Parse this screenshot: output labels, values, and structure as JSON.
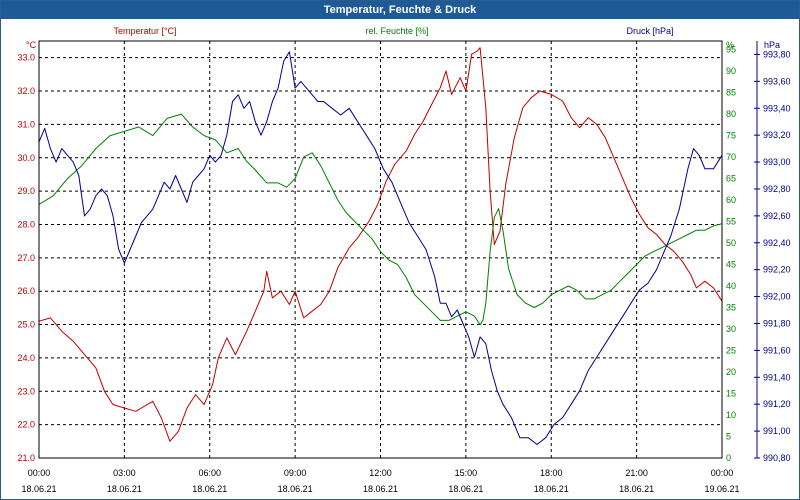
{
  "window": {
    "title": "Temperatur, Feuchte & Druck"
  },
  "colors": {
    "temperature": "#c00000",
    "humidity": "#008000",
    "pressure": "#00008b",
    "title_bar": "#1e5a96",
    "grid": "#000000"
  },
  "chart_data": {
    "type": "line",
    "title": "Temperatur, Feuchte & Druck",
    "grid": true,
    "x_ticks": [
      {
        "time": "00:00",
        "date": "18.06.21"
      },
      {
        "time": "03:00",
        "date": "18.06.21"
      },
      {
        "time": "06:00",
        "date": "18.06.21"
      },
      {
        "time": "09:00",
        "date": "18.06.21"
      },
      {
        "time": "12:00",
        "date": "18.06.21"
      },
      {
        "time": "15:00",
        "date": "18.06.21"
      },
      {
        "time": "18:00",
        "date": "18.06.21"
      },
      {
        "time": "21:00",
        "date": "18.06.21"
      },
      {
        "time": "00:00",
        "date": "19.06.21"
      }
    ],
    "x_range_hours": [
      0,
      24
    ],
    "axes": {
      "temperature": {
        "unit": "°C",
        "range": [
          21.0,
          33.5
        ],
        "ticks": [
          "21.0",
          "22.0",
          "23.0",
          "24.0",
          "25.0",
          "26.0",
          "27.0",
          "28.0",
          "29.0",
          "30.0",
          "31.0",
          "32.0",
          "33.0"
        ]
      },
      "humidity": {
        "unit": "%",
        "range": [
          0,
          97
        ],
        "ticks": [
          "0",
          "5",
          "10",
          "15",
          "20",
          "25",
          "30",
          "35",
          "40",
          "45",
          "50",
          "55",
          "60",
          "65",
          "70",
          "75",
          "80",
          "85",
          "90",
          "95"
        ]
      },
      "pressure": {
        "unit": "hPa",
        "range": [
          990.8,
          993.9
        ],
        "ticks": [
          "990,80",
          "991,00",
          "991,20",
          "991,40",
          "991,60",
          "991,80",
          "992,00",
          "992,20",
          "992,40",
          "992,60",
          "992,80",
          "993,00",
          "993,20",
          "993,40",
          "993,60",
          "993,80"
        ]
      }
    },
    "series": [
      {
        "name": "Temperatur [°C]",
        "axis": "temperature",
        "points": [
          [
            0,
            25.1
          ],
          [
            0.4,
            25.2
          ],
          [
            0.8,
            24.8
          ],
          [
            1.2,
            24.5
          ],
          [
            1.6,
            24.1
          ],
          [
            2.0,
            23.7
          ],
          [
            2.3,
            23.0
          ],
          [
            2.6,
            22.6
          ],
          [
            3.0,
            22.5
          ],
          [
            3.4,
            22.4
          ],
          [
            3.6,
            22.5
          ],
          [
            4.0,
            22.7
          ],
          [
            4.3,
            22.2
          ],
          [
            4.6,
            21.5
          ],
          [
            4.9,
            21.8
          ],
          [
            5.2,
            22.5
          ],
          [
            5.5,
            22.9
          ],
          [
            5.8,
            22.6
          ],
          [
            6.1,
            23.2
          ],
          [
            6.3,
            24.0
          ],
          [
            6.6,
            24.6
          ],
          [
            6.9,
            24.1
          ],
          [
            7.3,
            24.8
          ],
          [
            7.6,
            25.4
          ],
          [
            7.9,
            26.0
          ],
          [
            8.0,
            26.6
          ],
          [
            8.2,
            25.8
          ],
          [
            8.5,
            26.0
          ],
          [
            8.8,
            25.6
          ],
          [
            9.0,
            26.0
          ],
          [
            9.3,
            25.2
          ],
          [
            9.6,
            25.4
          ],
          [
            9.9,
            25.6
          ],
          [
            10.2,
            26.0
          ],
          [
            10.5,
            26.7
          ],
          [
            10.9,
            27.3
          ],
          [
            11.2,
            27.6
          ],
          [
            11.6,
            28.1
          ],
          [
            11.9,
            28.6
          ],
          [
            12.2,
            29.3
          ],
          [
            12.5,
            29.8
          ],
          [
            12.9,
            30.2
          ],
          [
            13.2,
            30.7
          ],
          [
            13.5,
            31.1
          ],
          [
            13.8,
            31.6
          ],
          [
            14.1,
            32.1
          ],
          [
            14.3,
            32.6
          ],
          [
            14.5,
            31.9
          ],
          [
            14.8,
            32.4
          ],
          [
            15.0,
            32.0
          ],
          [
            15.2,
            33.1
          ],
          [
            15.4,
            33.2
          ],
          [
            15.5,
            33.3
          ],
          [
            15.7,
            31.5
          ],
          [
            15.85,
            29.0
          ],
          [
            16.0,
            27.4
          ],
          [
            16.2,
            27.8
          ],
          [
            16.4,
            29.2
          ],
          [
            16.7,
            30.6
          ],
          [
            17.0,
            31.5
          ],
          [
            17.3,
            31.8
          ],
          [
            17.6,
            32.0
          ],
          [
            18.0,
            31.9
          ],
          [
            18.4,
            31.7
          ],
          [
            18.7,
            31.2
          ],
          [
            19.0,
            30.9
          ],
          [
            19.3,
            31.2
          ],
          [
            19.6,
            31.0
          ],
          [
            19.9,
            30.6
          ],
          [
            20.2,
            30.0
          ],
          [
            20.5,
            29.4
          ],
          [
            20.8,
            28.8
          ],
          [
            21.1,
            28.3
          ],
          [
            21.4,
            27.9
          ],
          [
            21.7,
            27.7
          ],
          [
            22.0,
            27.4
          ],
          [
            22.3,
            27.2
          ],
          [
            22.6,
            26.9
          ],
          [
            22.9,
            26.5
          ],
          [
            23.1,
            26.1
          ],
          [
            23.4,
            26.3
          ],
          [
            23.7,
            26.1
          ],
          [
            24.0,
            25.7
          ]
        ]
      },
      {
        "name": "rel. Feuchte [%]",
        "axis": "humidity",
        "points": [
          [
            0,
            59
          ],
          [
            0.5,
            61
          ],
          [
            1.0,
            65
          ],
          [
            1.5,
            68
          ],
          [
            2.0,
            72
          ],
          [
            2.5,
            75
          ],
          [
            3.0,
            76
          ],
          [
            3.5,
            77
          ],
          [
            4.0,
            75
          ],
          [
            4.5,
            79
          ],
          [
            5.0,
            80
          ],
          [
            5.4,
            77
          ],
          [
            5.8,
            75
          ],
          [
            6.2,
            74
          ],
          [
            6.6,
            71
          ],
          [
            7.0,
            72
          ],
          [
            7.3,
            69
          ],
          [
            7.6,
            67
          ],
          [
            8.0,
            64
          ],
          [
            8.4,
            64
          ],
          [
            8.7,
            63
          ],
          [
            9.0,
            65
          ],
          [
            9.3,
            70
          ],
          [
            9.6,
            71
          ],
          [
            9.9,
            68
          ],
          [
            10.2,
            64
          ],
          [
            10.5,
            60
          ],
          [
            10.8,
            57
          ],
          [
            11.1,
            55
          ],
          [
            11.4,
            53
          ],
          [
            11.7,
            51
          ],
          [
            12.0,
            48
          ],
          [
            12.3,
            46
          ],
          [
            12.6,
            45
          ],
          [
            12.9,
            42
          ],
          [
            13.2,
            38
          ],
          [
            13.5,
            36
          ],
          [
            13.8,
            34
          ],
          [
            14.1,
            32
          ],
          [
            14.4,
            32
          ],
          [
            14.7,
            33
          ],
          [
            15.0,
            34
          ],
          [
            15.3,
            33
          ],
          [
            15.5,
            31
          ],
          [
            15.6,
            32
          ],
          [
            15.7,
            36
          ],
          [
            15.85,
            48
          ],
          [
            16.0,
            56
          ],
          [
            16.15,
            58
          ],
          [
            16.3,
            53
          ],
          [
            16.5,
            44
          ],
          [
            16.8,
            38
          ],
          [
            17.1,
            36
          ],
          [
            17.4,
            35
          ],
          [
            17.7,
            36
          ],
          [
            18.0,
            38
          ],
          [
            18.3,
            39
          ],
          [
            18.6,
            40
          ],
          [
            18.9,
            39
          ],
          [
            19.2,
            37
          ],
          [
            19.5,
            37
          ],
          [
            19.8,
            38
          ],
          [
            20.1,
            39
          ],
          [
            20.4,
            41
          ],
          [
            20.7,
            43
          ],
          [
            21.0,
            45
          ],
          [
            21.3,
            47
          ],
          [
            21.6,
            48
          ],
          [
            21.9,
            49
          ],
          [
            22.2,
            50
          ],
          [
            22.5,
            51
          ],
          [
            22.8,
            52
          ],
          [
            23.1,
            53
          ],
          [
            23.4,
            53
          ],
          [
            23.7,
            54
          ],
          [
            24.0,
            54.5
          ]
        ]
      },
      {
        "name": "Druck [hPa]",
        "axis": "pressure",
        "points": [
          [
            0,
            993.15
          ],
          [
            0.2,
            993.25
          ],
          [
            0.4,
            993.1
          ],
          [
            0.6,
            993.0
          ],
          [
            0.8,
            993.1
          ],
          [
            1.0,
            993.05
          ],
          [
            1.2,
            993.0
          ],
          [
            1.4,
            992.9
          ],
          [
            1.6,
            992.6
          ],
          [
            1.8,
            992.65
          ],
          [
            2.0,
            992.75
          ],
          [
            2.2,
            992.8
          ],
          [
            2.4,
            992.75
          ],
          [
            2.6,
            992.6
          ],
          [
            2.8,
            992.35
          ],
          [
            3.0,
            992.25
          ],
          [
            3.2,
            992.35
          ],
          [
            3.4,
            992.45
          ],
          [
            3.6,
            992.55
          ],
          [
            3.8,
            992.6
          ],
          [
            4.0,
            992.65
          ],
          [
            4.2,
            992.75
          ],
          [
            4.4,
            992.85
          ],
          [
            4.6,
            992.8
          ],
          [
            4.8,
            992.9
          ],
          [
            5.0,
            992.8
          ],
          [
            5.2,
            992.7
          ],
          [
            5.4,
            992.85
          ],
          [
            5.6,
            992.9
          ],
          [
            5.8,
            992.95
          ],
          [
            6.0,
            993.05
          ],
          [
            6.2,
            993.0
          ],
          [
            6.4,
            993.05
          ],
          [
            6.6,
            993.2
          ],
          [
            6.8,
            993.45
          ],
          [
            7.0,
            993.5
          ],
          [
            7.2,
            993.4
          ],
          [
            7.4,
            993.45
          ],
          [
            7.6,
            993.3
          ],
          [
            7.8,
            993.2
          ],
          [
            8.0,
            993.3
          ],
          [
            8.2,
            993.45
          ],
          [
            8.4,
            993.55
          ],
          [
            8.6,
            993.75
          ],
          [
            8.8,
            993.82
          ],
          [
            9.0,
            993.55
          ],
          [
            9.2,
            993.6
          ],
          [
            9.4,
            993.55
          ],
          [
            9.6,
            993.5
          ],
          [
            9.8,
            993.45
          ],
          [
            10.0,
            993.45
          ],
          [
            10.3,
            993.4
          ],
          [
            10.6,
            993.35
          ],
          [
            10.9,
            993.4
          ],
          [
            11.2,
            993.3
          ],
          [
            11.5,
            993.2
          ],
          [
            11.8,
            993.1
          ],
          [
            12.1,
            992.95
          ],
          [
            12.4,
            992.85
          ],
          [
            12.7,
            992.7
          ],
          [
            13.0,
            992.55
          ],
          [
            13.3,
            992.45
          ],
          [
            13.6,
            992.35
          ],
          [
            13.9,
            992.15
          ],
          [
            14.1,
            991.95
          ],
          [
            14.3,
            991.95
          ],
          [
            14.5,
            991.85
          ],
          [
            14.7,
            991.9
          ],
          [
            14.9,
            991.8
          ],
          [
            15.1,
            991.7
          ],
          [
            15.3,
            991.55
          ],
          [
            15.5,
            991.7
          ],
          [
            15.7,
            991.65
          ],
          [
            15.9,
            991.45
          ],
          [
            16.1,
            991.3
          ],
          [
            16.3,
            991.2
          ],
          [
            16.6,
            991.1
          ],
          [
            16.9,
            990.95
          ],
          [
            17.2,
            990.95
          ],
          [
            17.5,
            990.9
          ],
          [
            17.8,
            990.95
          ],
          [
            18.1,
            991.05
          ],
          [
            18.4,
            991.1
          ],
          [
            18.7,
            991.2
          ],
          [
            19.0,
            991.3
          ],
          [
            19.3,
            991.45
          ],
          [
            19.6,
            991.55
          ],
          [
            19.9,
            991.65
          ],
          [
            20.2,
            991.75
          ],
          [
            20.5,
            991.85
          ],
          [
            20.8,
            991.95
          ],
          [
            21.1,
            992.05
          ],
          [
            21.4,
            992.1
          ],
          [
            21.7,
            992.2
          ],
          [
            21.9,
            992.3
          ],
          [
            22.2,
            992.45
          ],
          [
            22.5,
            992.65
          ],
          [
            22.8,
            992.95
          ],
          [
            23.0,
            993.1
          ],
          [
            23.2,
            993.05
          ],
          [
            23.4,
            992.95
          ],
          [
            23.7,
            992.95
          ],
          [
            24.0,
            993.05
          ]
        ]
      }
    ]
  }
}
